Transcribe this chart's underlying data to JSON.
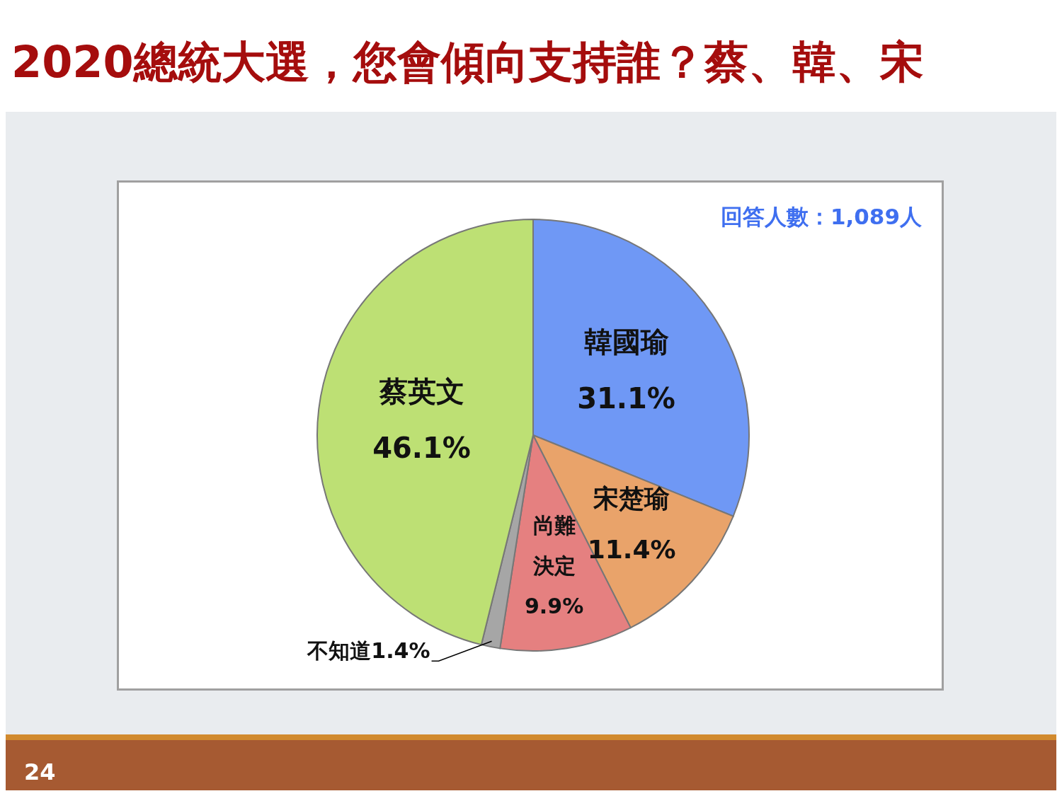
{
  "chart_data": {
    "type": "pie",
    "title": "2020總統大選，您會傾向支持誰？蔡、韓、宋",
    "categories": [
      "韓國瑜",
      "宋楚瑜",
      "尚難決定",
      "不知道",
      "蔡英文"
    ],
    "values": [
      31.1,
      11.4,
      9.9,
      1.4,
      46.1
    ],
    "value_labels": [
      "31.1%",
      "11.4%",
      "9.9%",
      "1.4%",
      "46.1%"
    ],
    "colors": [
      "#6f98f5",
      "#e9a36a",
      "#e58080",
      "#a6a6a6",
      "#bde074"
    ],
    "annotations": [
      "回答人數：1,089人",
      "24"
    ]
  }
}
